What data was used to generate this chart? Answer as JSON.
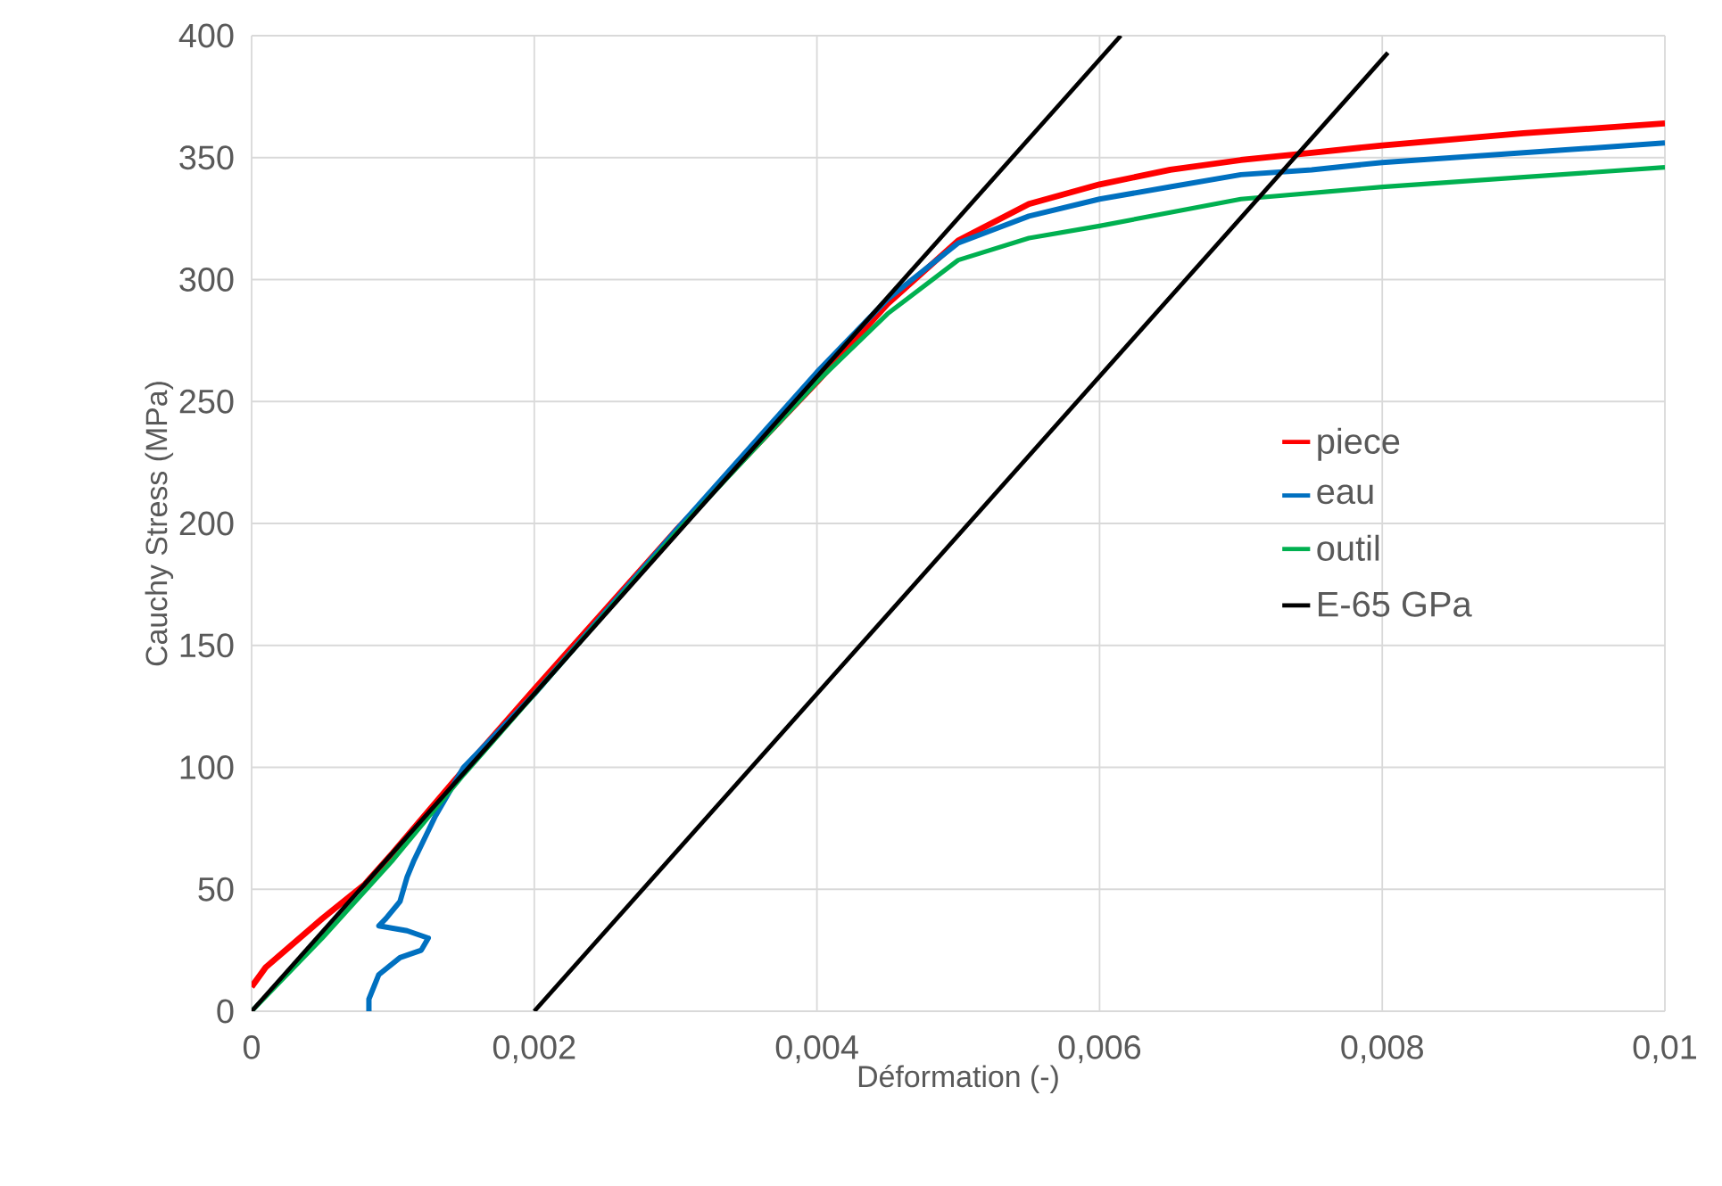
{
  "chart_data": {
    "type": "line",
    "xlabel": "Déformation (-)",
    "ylabel": "Cauchy Stress (MPa)",
    "xlim": [
      0,
      0.01
    ],
    "ylim": [
      0,
      400
    ],
    "xticks": [
      0,
      {
        "value": 0.002,
        "label": "0,002"
      },
      {
        "value": 0.004,
        "label": "0,004"
      },
      {
        "value": 0.006,
        "label": "0,006"
      },
      {
        "value": 0.008,
        "label": "0,008"
      },
      {
        "value": 0.01,
        "label": "0,01"
      }
    ],
    "yticks": [
      0,
      50,
      100,
      150,
      200,
      250,
      300,
      350,
      400
    ],
    "grid": true,
    "legend": "right",
    "marker": "none",
    "line_style": "solid",
    "series": [
      {
        "name": "piece",
        "color": "#ff0000",
        "x": [
          0,
          0.0001,
          0.0003,
          0.0005,
          0.0008,
          0.001,
          0.0015,
          0.002,
          0.003,
          0.004,
          0.0045,
          0.005,
          0.0055,
          0.006,
          0.0065,
          0.007,
          0.0075,
          0.008,
          0.009,
          0.01
        ],
        "values": [
          10,
          18,
          28,
          38,
          52,
          65,
          99,
          132,
          197,
          258,
          290,
          316,
          331,
          339,
          345,
          349,
          352,
          355,
          360,
          364
        ]
      },
      {
        "name": "eau",
        "color": "#0070c0",
        "x": [
          0.00083,
          0.00083,
          0.0009,
          0.00105,
          0.0012,
          0.00125,
          0.0011,
          0.0009,
          0.00095,
          0.00105,
          0.0011,
          0.00115,
          0.0013,
          0.0015,
          0.002,
          0.003,
          0.004,
          0.0045,
          0.005,
          0.0055,
          0.006,
          0.0065,
          0.007,
          0.0075,
          0.008,
          0.009,
          0.01
        ],
        "values": [
          0,
          5,
          15,
          22,
          25,
          30,
          33,
          35,
          38,
          45,
          55,
          62,
          80,
          100,
          130,
          197,
          262,
          292,
          315,
          326,
          333,
          338,
          343,
          345,
          348,
          352,
          356
        ]
      },
      {
        "name": "outil",
        "color": "#00b050",
        "x": [
          0,
          0.0005,
          0.001,
          0.0015,
          0.002,
          0.003,
          0.004,
          0.0045,
          0.005,
          0.0055,
          0.006,
          0.007,
          0.008,
          0.009,
          0.01
        ],
        "values": [
          0,
          30,
          62,
          97,
          130,
          196,
          258,
          286,
          308,
          317,
          322,
          333,
          338,
          342,
          346
        ]
      },
      {
        "name": "E-65 GPa",
        "color": "#000000",
        "x": [
          0,
          0.00615
        ],
        "values": [
          0,
          400
        ]
      },
      {
        "color": "#000000",
        "x": [
          0.002,
          0.00804
        ],
        "values": [
          0,
          393
        ]
      }
    ]
  }
}
